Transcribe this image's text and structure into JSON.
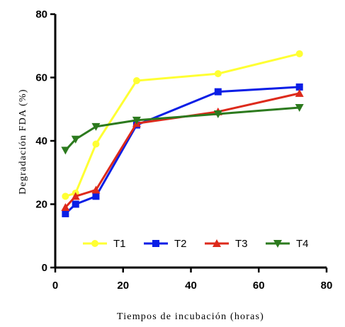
{
  "chart_data": {
    "type": "line",
    "xlabel": "Tiempos de incubación (horas)",
    "ylabel": "Degradación FDA (%)",
    "xlim": [
      0,
      80
    ],
    "ylim": [
      0,
      80
    ],
    "xticks": [
      0,
      20,
      40,
      60,
      80
    ],
    "yticks": [
      0,
      20,
      40,
      60,
      80
    ],
    "x": [
      3,
      6,
      12,
      24,
      48,
      72
    ],
    "grid": false,
    "legend_position": "bottom-center",
    "series": [
      {
        "name": "T1",
        "color": "#ffff33",
        "marker": "circle",
        "values": [
          22.5,
          23.5,
          39.0,
          59.0,
          61.2,
          67.5
        ]
      },
      {
        "name": "T2",
        "color": "#0a1ee6",
        "marker": "square",
        "values": [
          17.0,
          20.0,
          22.5,
          45.0,
          55.5,
          57.0
        ]
      },
      {
        "name": "T3",
        "color": "#dd2a1b",
        "marker": "triangle-up",
        "values": [
          19.0,
          22.5,
          24.5,
          45.5,
          49.2,
          55.0
        ]
      },
      {
        "name": "T4",
        "color": "#2c7a1e",
        "marker": "triangle-down",
        "values": [
          37.0,
          40.5,
          44.5,
          46.5,
          48.5,
          50.5
        ]
      }
    ]
  }
}
